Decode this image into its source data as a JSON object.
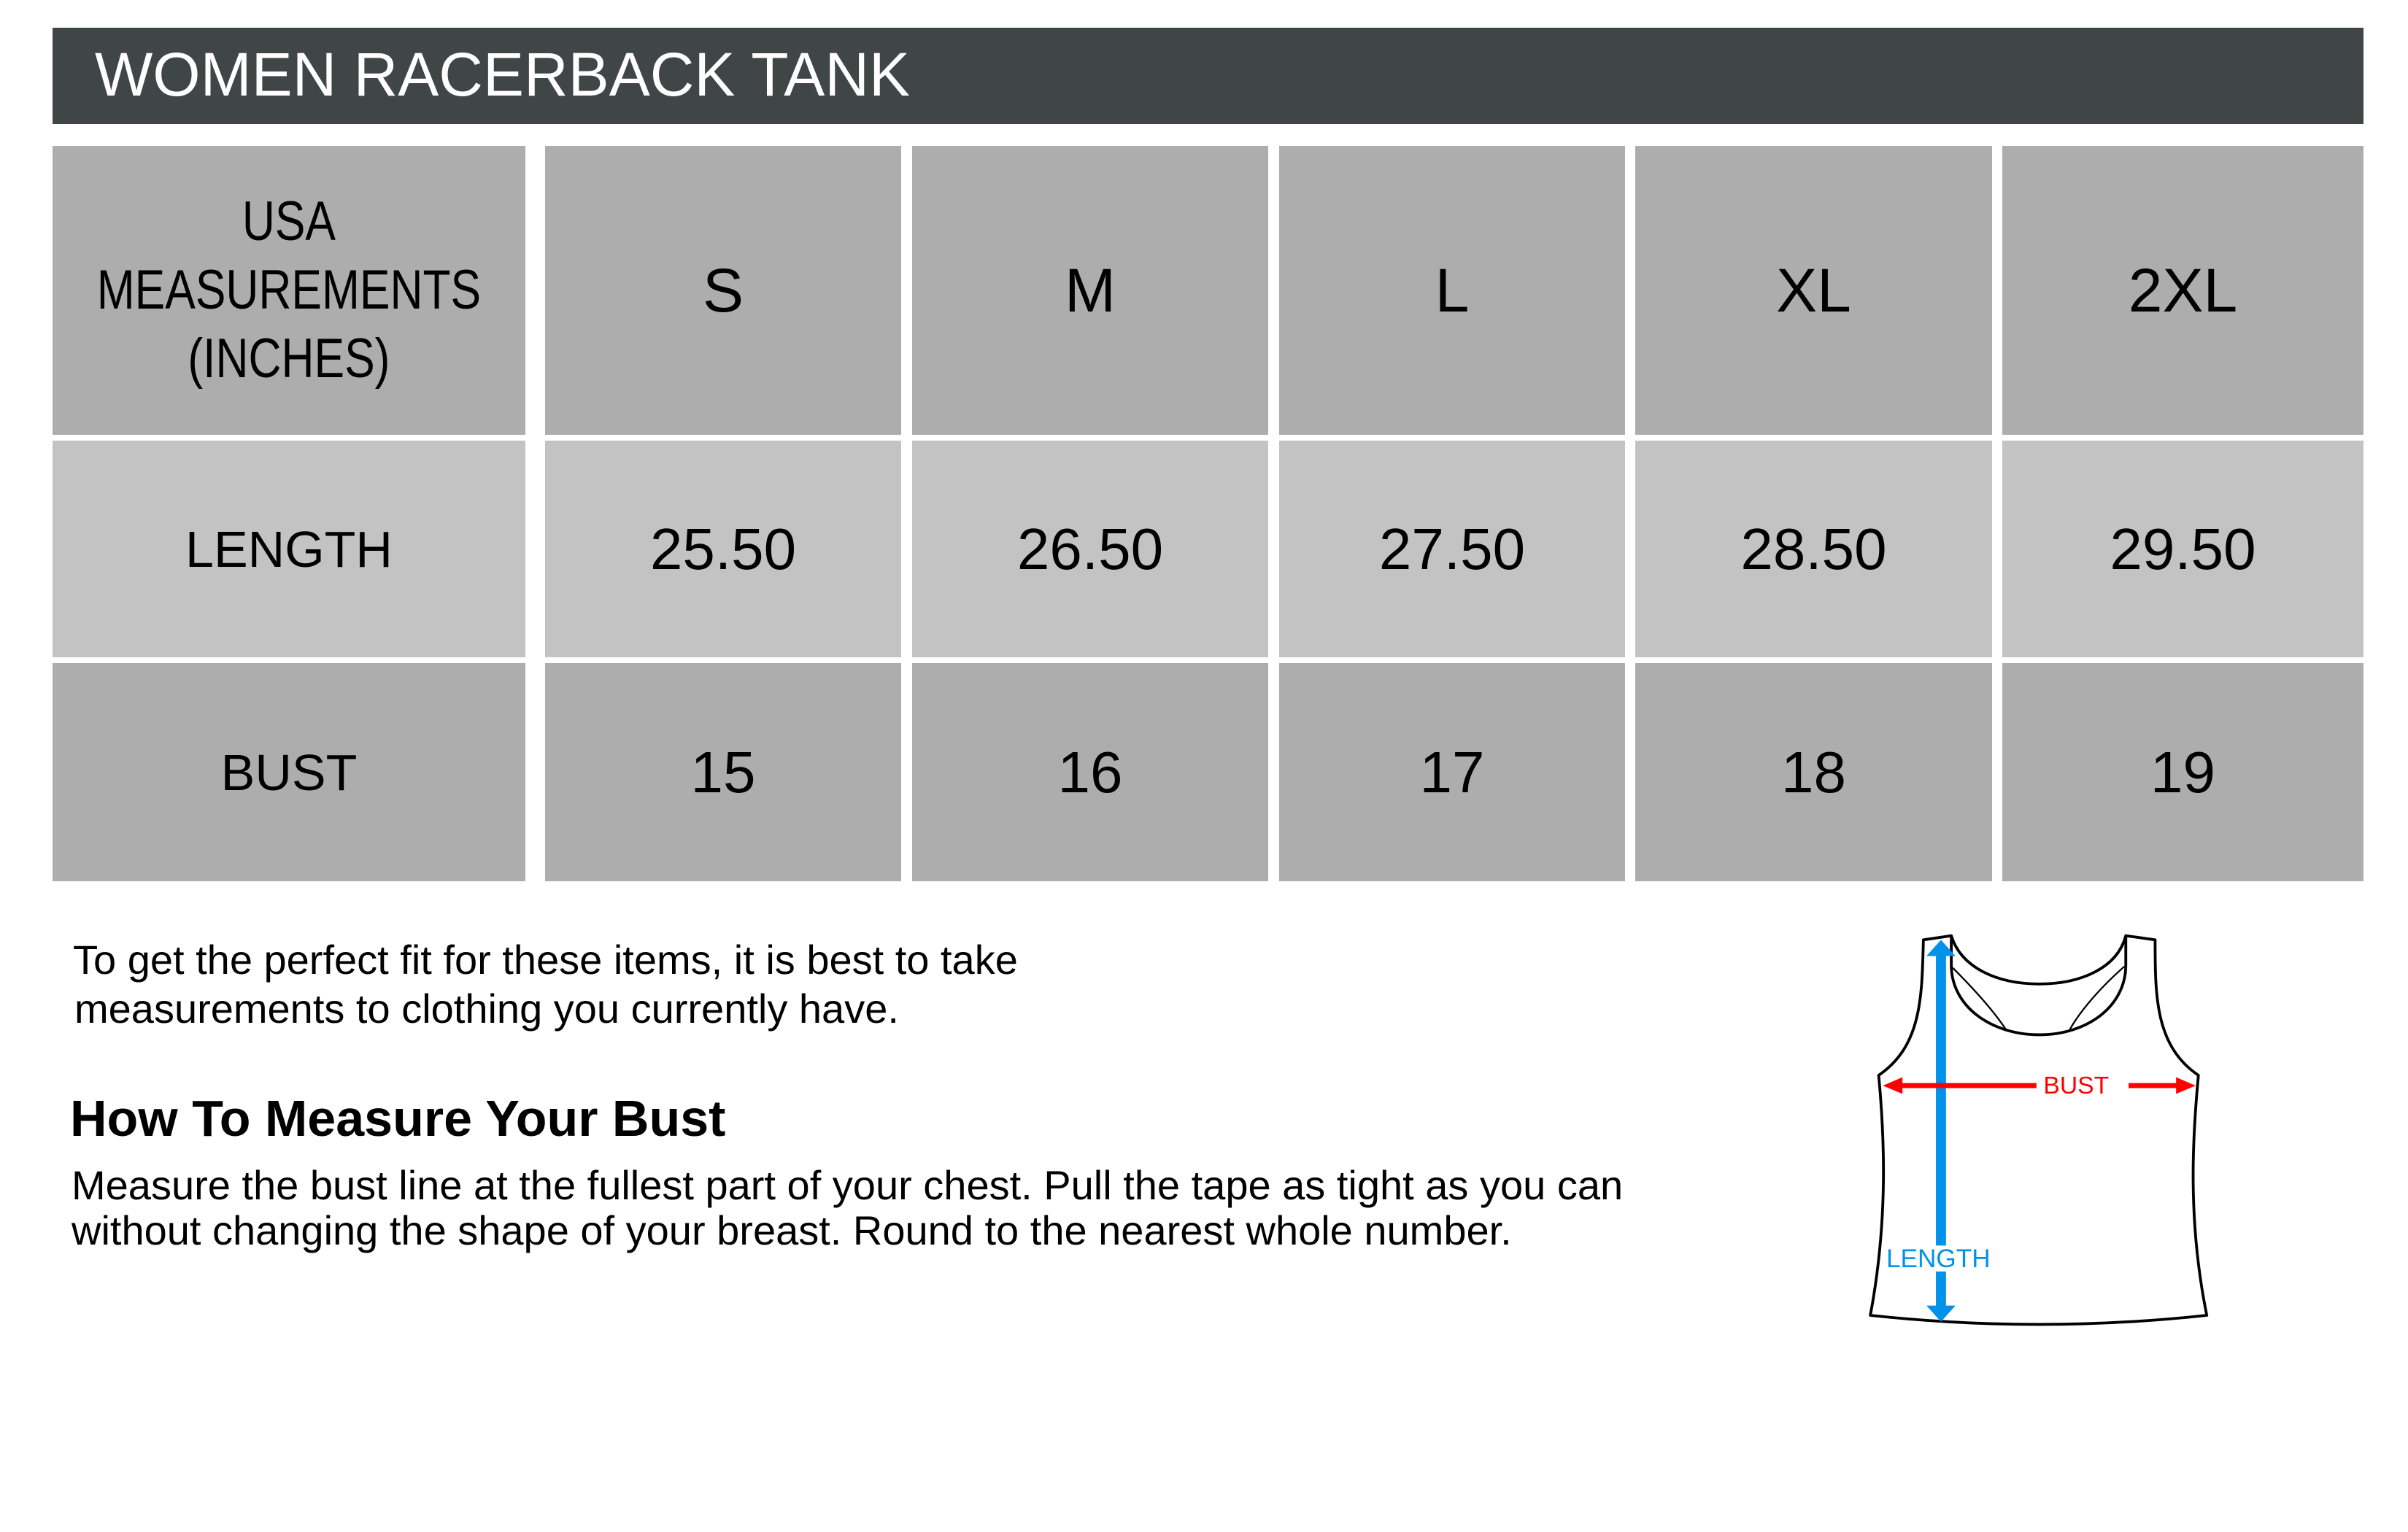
{
  "title": "WOMEN RACERBACK TANK",
  "table": {
    "corner": [
      "USA",
      "MEASUREMENTS",
      "(INCHES)"
    ],
    "sizes": [
      "S",
      "M",
      "L",
      "XL",
      "2XL"
    ],
    "rows": [
      {
        "label": "LENGTH",
        "values": [
          "25.50",
          "26.50",
          "27.50",
          "28.50",
          "29.50"
        ]
      },
      {
        "label": "BUST",
        "values": [
          "15",
          "16",
          "17",
          "18",
          "19"
        ]
      }
    ]
  },
  "intro": [
    "To get the perfect fit for these items, it is best to take",
    "measurements to clothing you currently have."
  ],
  "howto": {
    "heading": "How To Measure Your Bust",
    "lines": [
      "Measure the bust line at the fullest part of your chest. Pull the tape as tight as you can",
      "without changing the shape of your breast.  Round to the nearest whole number."
    ]
  },
  "diagram": {
    "bust_label": "BUST",
    "length_label": "LENGTH",
    "bust_color": "#ff0000",
    "length_color": "#0091ea"
  },
  "colors": {
    "header_bg": "#404545",
    "row_dark": "#adadad",
    "row_light": "#c3c3c3"
  }
}
